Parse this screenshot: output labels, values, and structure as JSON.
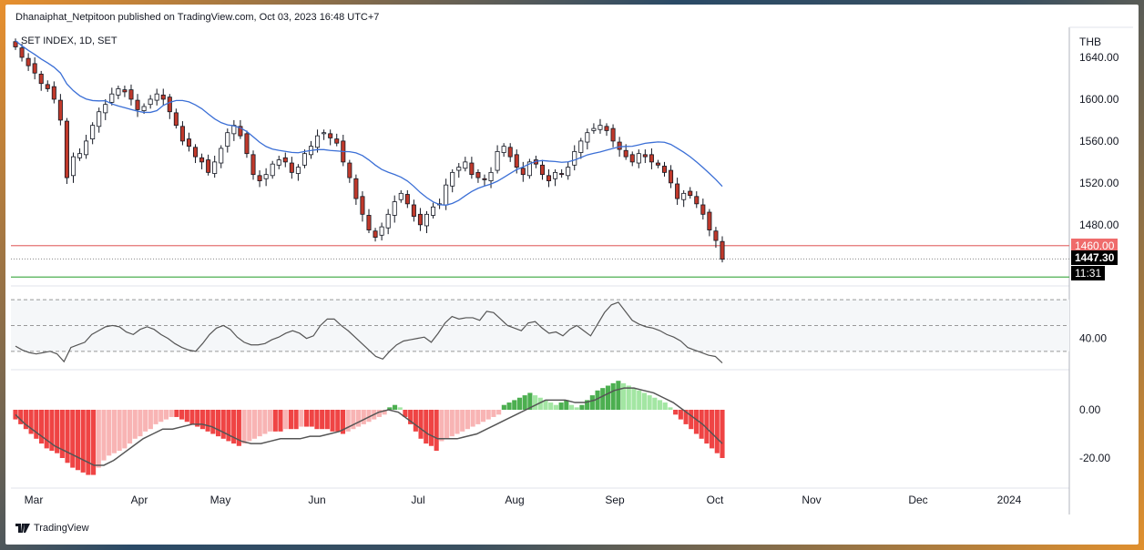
{
  "header": {
    "published": "Dhanaiphat_Netpitoon published on TradingView.com, Oct 03, 2023 16:48 UTC+7",
    "symbol": "SET INDEX, 1D, SET",
    "currency": "THB"
  },
  "footer": {
    "brand": "TradingView"
  },
  "price_tags": {
    "resistance_label": "1460.00",
    "last_price": "1447.30",
    "countdown": "11:31"
  },
  "colors": {
    "up": "#ffffff",
    "down": "#c0392b",
    "ma": "#3b6fd6",
    "resistance": "#e57373",
    "support": "#4caf50",
    "rsi": "#555555",
    "hist_neg_strong": "#ef4444",
    "hist_neg_weak": "#f8b4b4",
    "hist_pos_strong": "#4caf50",
    "hist_pos_weak": "#a3e6a3"
  },
  "chart_data": [
    {
      "type": "candlestick",
      "title": "SET INDEX, 1D, SET",
      "xlabels": [
        "Mar",
        "Apr",
        "May",
        "Jun",
        "Jul",
        "Aug",
        "Sep",
        "Oct",
        "Nov",
        "Dec",
        "2024"
      ],
      "y_ticks": [
        "1640.00",
        "1600.00",
        "1560.00",
        "1520.00",
        "1480.00"
      ],
      "ylim": [
        1425,
        1660
      ],
      "horizontal_lines": [
        {
          "value": 1460,
          "label": "1460.00",
          "color": "red"
        },
        {
          "value": 1430,
          "color": "green"
        }
      ],
      "last": 1447.3,
      "closes": [
        1650,
        1640,
        1632,
        1625,
        1615,
        1610,
        1600,
        1580,
        1525,
        1545,
        1548,
        1560,
        1575,
        1588,
        1595,
        1605,
        1610,
        1607,
        1600,
        1590,
        1593,
        1600,
        1605,
        1600,
        1588,
        1575,
        1560,
        1555,
        1545,
        1540,
        1530,
        1540,
        1553,
        1568,
        1575,
        1565,
        1548,
        1528,
        1522,
        1528,
        1538,
        1542,
        1540,
        1530,
        1535,
        1548,
        1555,
        1565,
        1568,
        1563,
        1558,
        1540,
        1525,
        1505,
        1490,
        1475,
        1468,
        1478,
        1490,
        1502,
        1510,
        1500,
        1488,
        1480,
        1490,
        1497,
        1500,
        1518,
        1530,
        1535,
        1540,
        1528,
        1525,
        1523,
        1530,
        1550,
        1555,
        1545,
        1535,
        1528,
        1540,
        1538,
        1528,
        1522,
        1530,
        1528,
        1535,
        1550,
        1560,
        1568,
        1572,
        1575,
        1570,
        1560,
        1552,
        1545,
        1540,
        1548,
        1545,
        1540,
        1537,
        1530,
        1520,
        1505,
        1510,
        1508,
        1500,
        1490,
        1475,
        1465,
        1447
      ]
    },
    {
      "type": "line",
      "name": "RSI",
      "y_ticks": [
        "40.00"
      ],
      "bands": [
        70,
        50,
        30
      ],
      "values": [
        34,
        31,
        29,
        28,
        29,
        30,
        28,
        22,
        33,
        35,
        37,
        43,
        46,
        49,
        50,
        49,
        45,
        43,
        47,
        49,
        47,
        43,
        40,
        36,
        33,
        31,
        30,
        36,
        43,
        48,
        50,
        47,
        41,
        37,
        35,
        35,
        36,
        39,
        41,
        44,
        46,
        44,
        40,
        42,
        50,
        55,
        55,
        50,
        46,
        41,
        36,
        31,
        26,
        24,
        30,
        35,
        38,
        39,
        40,
        41,
        37,
        44,
        52,
        57,
        55,
        56,
        56,
        54,
        61,
        60,
        55,
        50,
        48,
        46,
        52,
        53,
        48,
        44,
        45,
        42,
        47,
        50,
        46,
        42,
        51,
        60,
        66,
        68,
        61,
        54,
        51,
        49,
        48,
        46,
        43,
        41,
        38,
        33,
        31,
        29,
        27,
        26,
        21
      ]
    },
    {
      "type": "bar",
      "name": "MACD histogram",
      "y_ticks": [
        "0.00",
        "-20.00"
      ],
      "values": [
        -4,
        -6,
        -8,
        -10,
        -12,
        -14,
        -16,
        -17,
        -18,
        -20,
        -22,
        -24,
        -25,
        -26,
        -27,
        -27,
        -24,
        -21,
        -19,
        -18,
        -17,
        -16,
        -14,
        -12,
        -11,
        -9,
        -8,
        -6,
        -5,
        -4,
        -3,
        -3,
        -4,
        -5,
        -6,
        -7,
        -8,
        -9,
        -10,
        -11,
        -12,
        -13,
        -14,
        -15,
        -14,
        -13,
        -12,
        -11,
        -10,
        -9,
        -9,
        -9,
        -8,
        -8,
        -8,
        -7,
        -7,
        -7,
        -8,
        -8,
        -8,
        -9,
        -9,
        -10,
        -9,
        -8,
        -7,
        -6,
        -5,
        -4,
        -3,
        -2,
        1,
        2,
        1,
        -3,
        -6,
        -9,
        -12,
        -14,
        -15,
        -17,
        -13,
        -12,
        -11,
        -10,
        -9,
        -8,
        -7,
        -6,
        -5,
        -4,
        -3,
        -2,
        2,
        3,
        4,
        5,
        6,
        7,
        6,
        5,
        4,
        3,
        2,
        3,
        4,
        2,
        1,
        2,
        4,
        6,
        8,
        9,
        10,
        11,
        12,
        11,
        10,
        9,
        8,
        7,
        6,
        5,
        4,
        3,
        1,
        -2,
        -4,
        -6,
        -8,
        -10,
        -12,
        -14,
        -16,
        -18,
        -20
      ],
      "signal": [
        -2,
        -6,
        -9,
        -12,
        -15,
        -17,
        -19,
        -21,
        -23,
        -23,
        -21,
        -18,
        -15,
        -12,
        -10,
        -8,
        -8,
        -7,
        -6,
        -6,
        -7,
        -9,
        -11,
        -13,
        -14,
        -14,
        -13,
        -12,
        -12,
        -12,
        -11,
        -11,
        -10,
        -9,
        -7,
        -5,
        -3,
        -1,
        0,
        -1,
        -4,
        -7,
        -10,
        -12,
        -12,
        -12,
        -11,
        -10,
        -8,
        -6,
        -4,
        -2,
        0,
        2,
        4,
        4,
        4,
        3,
        3,
        4,
        6,
        8,
        9,
        9,
        8,
        7,
        5,
        3,
        0,
        -3,
        -6,
        -10,
        -14
      ]
    }
  ]
}
